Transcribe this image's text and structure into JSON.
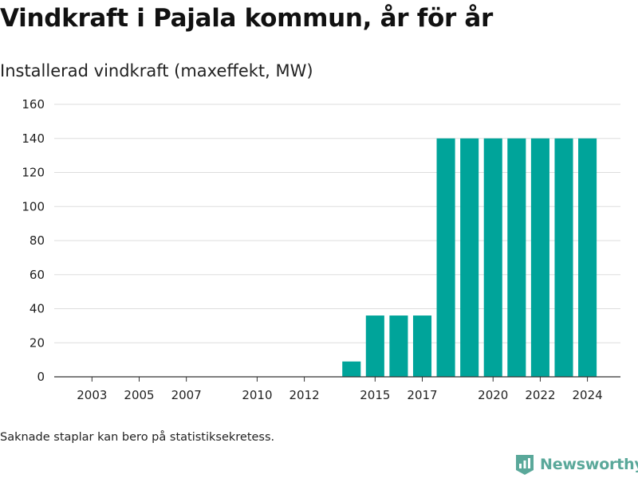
{
  "header": {
    "title": "Vindkraft i Pajala kommun, år för år",
    "subtitle": "Installerad vindkraft (maxeffekt, MW)"
  },
  "footer": {
    "note": "Saknade staplar kan bero på statistiksekretess.",
    "brand": "Newsworthy",
    "brand_icon": "newsworthy-logo-icon"
  },
  "colors": {
    "bar": "#00a49a",
    "grid": "#dddddd",
    "axis": "#333333",
    "brand": "#5aa89a"
  },
  "chart_data": {
    "type": "bar",
    "categories": [
      2014,
      2015,
      2016,
      2017,
      2018,
      2019,
      2020,
      2021,
      2022,
      2023,
      2024
    ],
    "values": [
      9,
      36,
      36,
      36,
      140,
      140,
      140,
      140,
      140,
      140,
      140
    ],
    "x_ticks": [
      2003,
      2005,
      2007,
      2010,
      2012,
      2015,
      2017,
      2020,
      2022,
      2024
    ],
    "xlim": [
      2001.4,
      2025.4
    ],
    "ylim": [
      0,
      160
    ],
    "y_ticks": [
      0,
      20,
      40,
      60,
      80,
      100,
      120,
      140,
      160
    ],
    "grid": true,
    "title": "Vindkraft i Pajala kommun, år för år",
    "subtitle": "Installerad vindkraft (maxeffekt, MW)",
    "xlabel": "",
    "ylabel": ""
  }
}
